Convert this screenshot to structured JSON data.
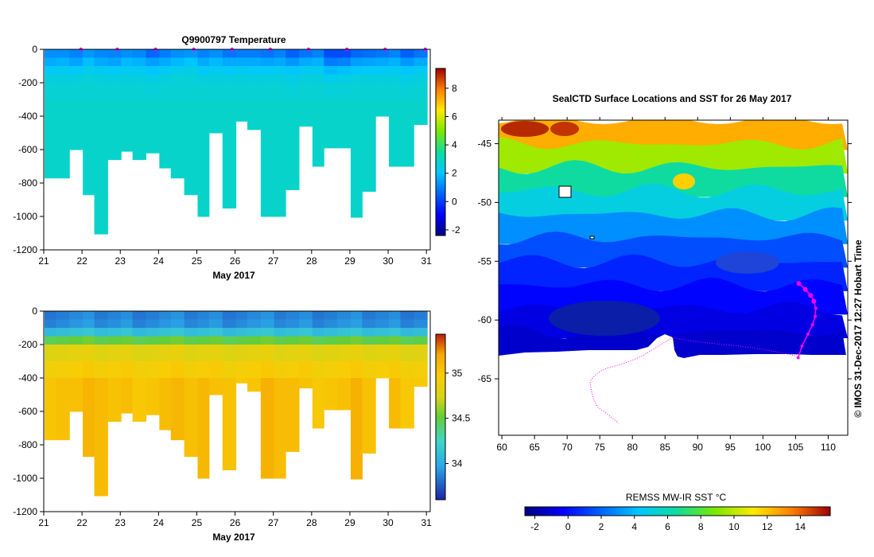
{
  "credit": "© IMOS 31-Dec-2017 12:27 Hobart Time",
  "chart_data": [
    {
      "type": "heatmap",
      "id": "temperature-section",
      "title": "Q9900797  Temperature",
      "xlabel": "May 2017",
      "ylabel": "",
      "x_ticks": [
        "21",
        "22",
        "23",
        "24",
        "25",
        "26",
        "27",
        "28",
        "29",
        "30",
        "31"
      ],
      "y_ticks": [
        "0",
        "-200",
        "-400",
        "-600",
        "-800",
        "-1000",
        "-1200"
      ],
      "xlim": [
        21,
        31.1
      ],
      "ylim": [
        -1200,
        0
      ],
      "colorbar": {
        "min": -2.4,
        "max": 9.4,
        "ticks": [
          "8",
          "6",
          "4",
          "2",
          "0",
          "-2"
        ]
      },
      "profile_dates": [
        21.0,
        21.3,
        21.65,
        22.0,
        22.3,
        22.65,
        23.0,
        23.3,
        23.65,
        24.0,
        24.3,
        24.65,
        25.0,
        25.3,
        25.65,
        26.0,
        26.3,
        26.65,
        27.0,
        27.3,
        27.65,
        28.0,
        28.3,
        28.65,
        29.0,
        29.3,
        29.65,
        30.0,
        30.3,
        30.65
      ],
      "profile_max_depths": [
        -770,
        -770,
        -600,
        -870,
        -1105,
        -660,
        -610,
        -660,
        -620,
        -710,
        -770,
        -870,
        -1000,
        -500,
        -950,
        -430,
        -480,
        -1000,
        -1000,
        -840,
        -460,
        -700,
        -590,
        -590,
        -1005,
        -850,
        -400,
        -700,
        -700,
        -450
      ],
      "profile_values": [
        [
          1.2,
          1.6,
          2.1,
          2.5,
          2.7,
          2.8,
          2.8
        ],
        [
          1.2,
          1.7,
          2.2,
          2.5,
          2.7,
          2.8,
          2.8
        ],
        [
          1.0,
          1.5,
          2.1,
          2.5,
          2.7,
          2.8,
          2.8
        ],
        [
          1.3,
          1.9,
          2.3,
          2.6,
          2.7,
          2.8,
          2.8
        ],
        [
          1.1,
          1.6,
          2.2,
          2.5,
          2.7,
          2.8,
          2.8
        ],
        [
          1.0,
          1.5,
          2.1,
          2.5,
          2.7,
          2.8,
          2.8
        ],
        [
          1.2,
          1.8,
          2.2,
          2.5,
          2.7,
          2.8,
          2.8
        ],
        [
          1.1,
          1.7,
          2.2,
          2.5,
          2.7,
          2.8,
          2.8
        ],
        [
          0.6,
          1.4,
          2.0,
          2.4,
          2.6,
          2.8,
          2.8
        ],
        [
          0.9,
          1.6,
          2.2,
          2.5,
          2.7,
          2.8,
          2.8
        ],
        [
          1.2,
          1.8,
          2.3,
          2.6,
          2.7,
          2.8,
          2.8
        ],
        [
          1.3,
          2.0,
          2.4,
          2.6,
          2.7,
          2.8,
          2.8
        ],
        [
          1.0,
          1.6,
          2.1,
          2.5,
          2.7,
          2.8,
          2.8
        ],
        [
          1.2,
          1.8,
          2.2,
          2.5,
          2.7,
          2.8,
          2.8
        ],
        [
          0.8,
          1.6,
          2.1,
          2.5,
          2.7,
          2.8,
          2.8
        ],
        [
          0.9,
          1.6,
          2.2,
          2.5,
          2.7,
          2.8,
          2.8
        ],
        [
          0.9,
          1.6,
          2.1,
          2.5,
          2.7,
          2.8,
          2.8
        ],
        [
          0.8,
          1.5,
          2.1,
          2.5,
          2.7,
          2.8,
          2.8
        ],
        [
          1.0,
          1.6,
          2.2,
          2.5,
          2.7,
          2.8,
          2.8
        ],
        [
          0.5,
          1.3,
          2.0,
          2.4,
          2.6,
          2.8,
          2.8
        ],
        [
          0.8,
          1.6,
          2.2,
          2.5,
          2.7,
          2.8,
          2.8
        ],
        [
          1.0,
          1.7,
          2.2,
          2.5,
          2.7,
          2.8,
          2.8
        ],
        [
          0.2,
          0.9,
          1.8,
          2.3,
          2.6,
          2.8,
          2.8
        ],
        [
          0.2,
          1.0,
          1.9,
          2.4,
          2.6,
          2.8,
          2.8
        ],
        [
          0.6,
          1.4,
          2.0,
          2.5,
          2.7,
          2.8,
          2.8
        ],
        [
          0.7,
          1.5,
          2.1,
          2.5,
          2.7,
          2.8,
          2.8
        ],
        [
          0.8,
          1.6,
          2.1,
          2.5,
          2.7,
          2.8,
          2.8
        ],
        [
          1.0,
          1.7,
          2.2,
          2.5,
          2.7,
          2.8,
          2.8
        ],
        [
          0.5,
          1.3,
          2.0,
          2.4,
          2.6,
          2.8,
          2.8
        ],
        [
          0.8,
          1.6,
          2.2,
          2.5,
          2.7,
          2.8,
          2.8
        ]
      ]
    },
    {
      "type": "heatmap",
      "id": "salinity-section",
      "title": "",
      "xlabel": "May 2017",
      "ylabel": "",
      "x_ticks": [
        "21",
        "22",
        "23",
        "24",
        "25",
        "26",
        "27",
        "28",
        "29",
        "30",
        "31"
      ],
      "y_ticks": [
        "0",
        "-200",
        "-400",
        "-600",
        "-800",
        "-1000",
        "-1200"
      ],
      "xlim": [
        21,
        31.1
      ],
      "ylim": [
        -1200,
        0
      ],
      "colorbar": {
        "min": 33.6,
        "max": 35.43,
        "ticks": [
          "35",
          "34.5",
          "34"
        ]
      },
      "profile_dates": [
        21.0,
        21.3,
        21.65,
        22.0,
        22.3,
        22.65,
        23.0,
        23.3,
        23.65,
        24.0,
        24.3,
        24.65,
        25.0,
        25.3,
        25.65,
        26.0,
        26.3,
        26.65,
        27.0,
        27.3,
        27.65,
        28.0,
        28.3,
        28.65,
        29.0,
        29.3,
        29.65,
        30.0,
        30.3,
        30.65
      ],
      "profile_max_depths": [
        -770,
        -770,
        -600,
        -870,
        -1105,
        -660,
        -610,
        -660,
        -620,
        -710,
        -770,
        -870,
        -1000,
        -500,
        -950,
        -430,
        -480,
        -1000,
        -1000,
        -840,
        -460,
        -700,
        -590,
        -590,
        -1005,
        -850,
        -400,
        -700,
        -700,
        -450
      ],
      "depth_levels": [
        0,
        -100,
        -150,
        -200,
        -300,
        -400,
        -600,
        -800,
        -1000
      ],
      "salinity_values": [
        33.85,
        33.92,
        34.3,
        34.7,
        34.92,
        35.0,
        35.07,
        35.12,
        35.15
      ]
    },
    {
      "type": "scatter",
      "id": "sst-map",
      "title": "SealCTD Surface Locations and SST for 26 May 2017",
      "xlabel": "",
      "ylabel": "",
      "x_ticks": [
        "60",
        "65",
        "70",
        "75",
        "80",
        "85",
        "90",
        "95",
        "100",
        "105",
        "110"
      ],
      "y_ticks": [
        "-45",
        "-50",
        "-55",
        "-60",
        "-65"
      ],
      "xlim": [
        59.5,
        113
      ],
      "ylim": [
        -69.8,
        -43
      ],
      "colorbar": {
        "label": "REMSS MW-IR SST °C",
        "min": -2.6,
        "max": 15.8,
        "ticks": [
          "-2",
          "0",
          "2",
          "4",
          "6",
          "8",
          "10",
          "12",
          "14"
        ]
      },
      "sst_latitude_bands": [
        -43,
        -45,
        -47,
        -49,
        -51,
        -53,
        -55,
        -57,
        -59,
        -61,
        -63.3
      ],
      "sst_band_values": [
        12.5,
        9.5,
        6.5,
        5.0,
        3.0,
        1.5,
        0.5,
        -0.2,
        -0.8,
        -1.2,
        -1.5
      ],
      "seal_track": {
        "lon": [
          105.5,
          106.5,
          107.3,
          107.8,
          108.1,
          108.0,
          107.6,
          106.9,
          106.0,
          105.4
        ],
        "lat": [
          -56.9,
          -57.4,
          -57.9,
          -58.4,
          -59.0,
          -59.7,
          -60.4,
          -61.2,
          -62.2,
          -63.2
        ]
      }
    }
  ]
}
